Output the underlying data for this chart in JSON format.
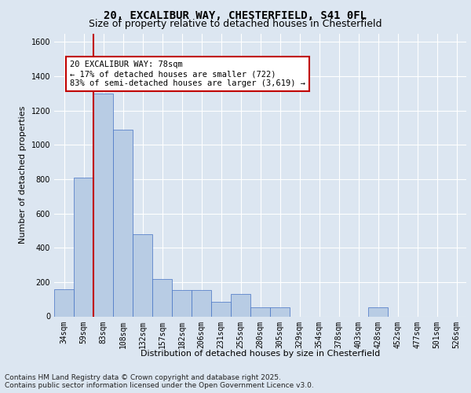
{
  "title1": "20, EXCALIBUR WAY, CHESTERFIELD, S41 0FL",
  "title2": "Size of property relative to detached houses in Chesterfield",
  "xlabel": "Distribution of detached houses by size in Chesterfield",
  "ylabel": "Number of detached properties",
  "categories": [
    "34sqm",
    "59sqm",
    "83sqm",
    "108sqm",
    "132sqm",
    "157sqm",
    "182sqm",
    "206sqm",
    "231sqm",
    "255sqm",
    "280sqm",
    "305sqm",
    "329sqm",
    "354sqm",
    "378sqm",
    "403sqm",
    "428sqm",
    "452sqm",
    "477sqm",
    "501sqm",
    "526sqm"
  ],
  "values": [
    160,
    810,
    1300,
    1090,
    480,
    220,
    155,
    155,
    85,
    130,
    55,
    55,
    0,
    0,
    0,
    0,
    55,
    0,
    0,
    0,
    0
  ],
  "bar_color": "#b8cce4",
  "bar_edge_color": "#4472c4",
  "vline_color": "#c00000",
  "annotation_text": "20 EXCALIBUR WAY: 78sqm\n← 17% of detached houses are smaller (722)\n83% of semi-detached houses are larger (3,619) →",
  "annotation_box_color": "#ffffff",
  "annotation_box_edge": "#c00000",
  "ylim": [
    0,
    1650
  ],
  "yticks": [
    0,
    200,
    400,
    600,
    800,
    1000,
    1200,
    1400,
    1600
  ],
  "bg_color": "#dce6f1",
  "footer": "Contains HM Land Registry data © Crown copyright and database right 2025.\nContains public sector information licensed under the Open Government Licence v3.0.",
  "title_fontsize": 10,
  "subtitle_fontsize": 9,
  "axis_label_fontsize": 8,
  "tick_fontsize": 7,
  "annot_fontsize": 7.5,
  "footer_fontsize": 6.5
}
